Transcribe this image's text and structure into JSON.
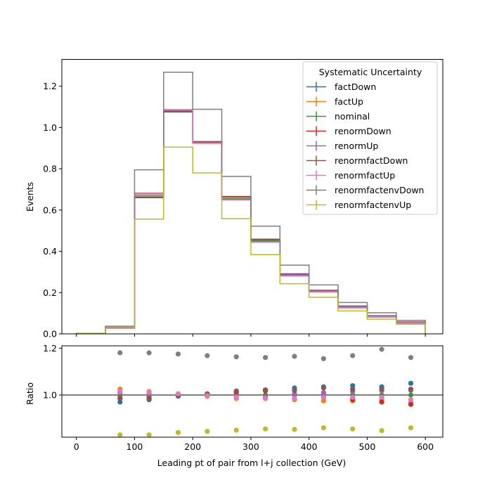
{
  "chart_data": [
    {
      "type": "line",
      "subtype": "step-histogram",
      "title": "",
      "xlabel": "",
      "ylabel": "Events",
      "xlim": [
        -25,
        630
      ],
      "ylim": [
        0,
        1.33
      ],
      "bin_edges": [
        0,
        50,
        100,
        150,
        200,
        250,
        300,
        350,
        400,
        450,
        500,
        550,
        600
      ],
      "x_ticks": [
        0,
        100,
        200,
        300,
        400,
        500,
        600
      ],
      "y_ticks": [
        0.0,
        0.2,
        0.4,
        0.6,
        0.8,
        1.0,
        1.2
      ],
      "y_tick_labels": [
        "0.0",
        "0.2",
        "0.4",
        "0.6",
        "0.8",
        "1.0",
        "1.2"
      ],
      "legend": {
        "title": "Systematic Uncertainty",
        "placement": "top-right"
      },
      "series": [
        {
          "name": "factDown",
          "color": "#1f77b4",
          "values": [
            0.002,
            0.03,
            0.66,
            1.075,
            0.93,
            0.665,
            0.455,
            0.29,
            0.21,
            0.135,
            0.088,
            0.058
          ]
        },
        {
          "name": "factUp",
          "color": "#ff7f0e",
          "values": [
            0.002,
            0.031,
            0.683,
            1.087,
            0.923,
            0.65,
            0.445,
            0.28,
            0.203,
            0.128,
            0.083,
            0.054
          ]
        },
        {
          "name": "nominal",
          "color": "#2ca02c",
          "values": [
            0.002,
            0.031,
            0.672,
            1.08,
            0.928,
            0.655,
            0.45,
            0.285,
            0.205,
            0.13,
            0.085,
            0.056
          ]
        },
        {
          "name": "renormDown",
          "color": "#d62728",
          "values": [
            0.002,
            0.031,
            0.663,
            1.077,
            0.93,
            0.662,
            0.458,
            0.282,
            0.203,
            0.127,
            0.082,
            0.053
          ]
        },
        {
          "name": "renormUp",
          "color": "#9467bd",
          "values": [
            0.002,
            0.031,
            0.679,
            1.083,
            0.926,
            0.651,
            0.446,
            0.286,
            0.207,
            0.132,
            0.086,
            0.057
          ]
        },
        {
          "name": "renormfactDown",
          "color": "#8c564b",
          "values": [
            0.002,
            0.03,
            0.664,
            1.078,
            0.932,
            0.666,
            0.459,
            0.291,
            0.211,
            0.134,
            0.087,
            0.057
          ]
        },
        {
          "name": "renormfactUp",
          "color": "#e377c2",
          "values": [
            0.002,
            0.031,
            0.681,
            1.086,
            0.924,
            0.649,
            0.444,
            0.281,
            0.204,
            0.129,
            0.084,
            0.055
          ]
        },
        {
          "name": "renormfactenvDown",
          "color": "#7f7f7f",
          "values": [
            0.002,
            0.037,
            0.795,
            1.268,
            1.088,
            0.763,
            0.522,
            0.333,
            0.237,
            0.152,
            0.102,
            0.065
          ]
        },
        {
          "name": "renormfactenvUp",
          "color": "#bcbd22",
          "values": [
            0.002,
            0.026,
            0.556,
            0.905,
            0.78,
            0.558,
            0.384,
            0.243,
            0.177,
            0.111,
            0.071,
            0.047
          ]
        }
      ]
    },
    {
      "type": "scatter",
      "title": "",
      "xlabel": "Leading pt of pair from l+j collection (GeV)",
      "ylabel": "Ratio",
      "xlim": [
        -25,
        630
      ],
      "ylim": [
        0.82,
        1.21
      ],
      "x_ticks": [
        0,
        100,
        200,
        300,
        400,
        500,
        600
      ],
      "x_tick_labels": [
        "0",
        "100",
        "200",
        "300",
        "400",
        "500",
        "600"
      ],
      "y_ticks": [
        1.0,
        1.2
      ],
      "y_tick_labels": [
        "1.0",
        "1.2"
      ],
      "reference_line": 1.0,
      "x": [
        75,
        125,
        175,
        225,
        275,
        325,
        375,
        425,
        475,
        525,
        575
      ],
      "series": [
        {
          "name": "factDown",
          "color": "#1f77b4",
          "values": [
            0.97,
            0.98,
            0.995,
            1.005,
            1.015,
            1.02,
            1.03,
            1.035,
            1.04,
            1.035,
            1.05
          ]
        },
        {
          "name": "factUp",
          "color": "#ff7f0e",
          "values": [
            1.025,
            1.015,
            1.005,
            0.995,
            0.985,
            0.985,
            0.98,
            0.975,
            0.975,
            0.98,
            0.97
          ]
        },
        {
          "name": "nominal",
          "color": "#2ca02c",
          "values": [
            1.0,
            1.0,
            1.0,
            1.0,
            1.0,
            1.0,
            1.0,
            1.0,
            1.0,
            1.0,
            1.0
          ]
        },
        {
          "name": "renormDown",
          "color": "#d62728",
          "values": [
            0.985,
            0.99,
            0.997,
            1.003,
            1.01,
            1.018,
            0.985,
            0.99,
            0.98,
            0.97,
            0.96
          ]
        },
        {
          "name": "renormUp",
          "color": "#9467bd",
          "values": [
            1.01,
            1.005,
            1.003,
            0.998,
            0.993,
            0.99,
            1.005,
            1.01,
            1.015,
            1.018,
            1.02
          ]
        },
        {
          "name": "renormfactDown",
          "color": "#8c564b",
          "values": [
            0.988,
            0.985,
            0.998,
            1.005,
            1.017,
            1.022,
            1.02,
            1.03,
            1.025,
            1.025,
            1.025
          ]
        },
        {
          "name": "renormfactUp",
          "color": "#e377c2",
          "values": [
            1.015,
            1.012,
            1.005,
            0.997,
            0.99,
            0.985,
            0.985,
            0.99,
            0.99,
            0.99,
            0.98
          ]
        },
        {
          "name": "renormfactenvDown",
          "color": "#7f7f7f",
          "values": [
            1.18,
            1.18,
            1.175,
            1.168,
            1.163,
            1.16,
            1.165,
            1.155,
            1.168,
            1.195,
            1.16
          ]
        },
        {
          "name": "renormfactenvUp",
          "color": "#bcbd22",
          "values": [
            0.83,
            0.83,
            0.84,
            0.845,
            0.85,
            0.855,
            0.853,
            0.86,
            0.855,
            0.848,
            0.86
          ]
        }
      ]
    }
  ]
}
